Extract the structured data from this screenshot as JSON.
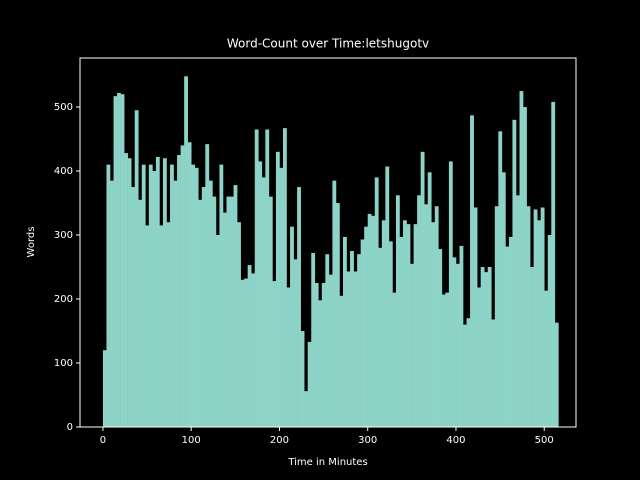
{
  "chart_data": {
    "type": "bar",
    "title": "Word-Count over Time:letshugotv",
    "x_label": "Time in Minutes",
    "y_label": "Words",
    "color": "#8dd3c7",
    "width": 4,
    "x": [
      0,
      4,
      8,
      12,
      16,
      20,
      24,
      28,
      32,
      36,
      40,
      44,
      48,
      52,
      56,
      60,
      64,
      68,
      72,
      76,
      80,
      84,
      88,
      92,
      96,
      100,
      104,
      108,
      112,
      116,
      120,
      124,
      128,
      132,
      136,
      140,
      144,
      148,
      152,
      156,
      160,
      164,
      168,
      172,
      176,
      180,
      184,
      188,
      192,
      196,
      200,
      204,
      208,
      212,
      216,
      220,
      224,
      228,
      232,
      236,
      240,
      244,
      248,
      252,
      256,
      260,
      264,
      268,
      272,
      276,
      280,
      284,
      288,
      292,
      296,
      300,
      304,
      308,
      312,
      316,
      320,
      324,
      328,
      332,
      336,
      340,
      344,
      348,
      352,
      356,
      360,
      364,
      368,
      372,
      376,
      380,
      384,
      388,
      392,
      396,
      400,
      404,
      408,
      412,
      416,
      420,
      424,
      428,
      432,
      436,
      440,
      444,
      448,
      452,
      456,
      460,
      464,
      468,
      472,
      476,
      480,
      484,
      488,
      492,
      496,
      500,
      504,
      508,
      512
    ],
    "values": [
      120,
      410,
      385,
      517,
      522,
      520,
      428,
      420,
      375,
      495,
      355,
      410,
      315,
      410,
      400,
      422,
      315,
      420,
      320,
      410,
      385,
      425,
      440,
      548,
      445,
      410,
      405,
      355,
      375,
      442,
      385,
      360,
      300,
      410,
      335,
      360,
      360,
      378,
      320,
      230,
      232,
      253,
      240,
      465,
      415,
      390,
      465,
      360,
      228,
      430,
      405,
      467,
      218,
      313,
      262,
      375,
      150,
      56,
      133,
      272,
      225,
      198,
      225,
      270,
      238,
      385,
      350,
      205,
      297,
      243,
      275,
      243,
      270,
      293,
      313,
      333,
      330,
      390,
      280,
      323,
      407,
      290,
      210,
      362,
      297,
      323,
      317,
      255,
      317,
      362,
      430,
      348,
      398,
      320,
      345,
      278,
      207,
      210,
      415,
      265,
      255,
      283,
      160,
      170,
      487,
      343,
      218,
      250,
      242,
      250,
      168,
      345,
      462,
      398,
      282,
      297,
      480,
      362,
      525,
      500,
      345,
      250,
      340,
      323,
      343,
      213,
      300,
      508,
      163
    ],
    "xlim": [
      -26,
      536
    ],
    "ylim": [
      0,
      576.6
    ],
    "xticks": [
      0,
      100,
      200,
      300,
      400,
      500
    ],
    "yticks": [
      0,
      100,
      200,
      300,
      400,
      500
    ]
  }
}
